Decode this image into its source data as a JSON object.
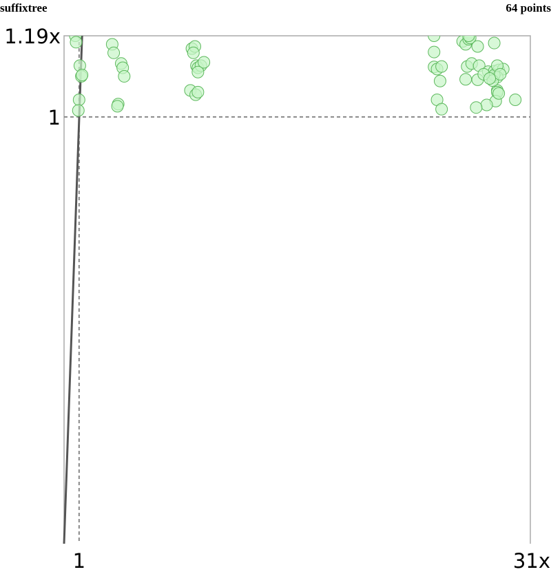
{
  "header": {
    "left": "suffixtree",
    "right": "64 points"
  },
  "chart_data": {
    "type": "scatter",
    "title": "suffixtree",
    "annotation": "64 points",
    "x_ticks": [
      {
        "value": 1,
        "label": "1"
      },
      {
        "value": 31,
        "label": "31x"
      }
    ],
    "y_ticks": [
      {
        "value": 1,
        "label": "1"
      },
      {
        "value": 1.19,
        "label": "1.19x"
      }
    ],
    "xlim": [
      0,
      31
    ],
    "ylim": [
      0,
      1.19
    ],
    "reference_lines": {
      "x": 1,
      "y": 1
    },
    "trend_line": [
      [
        0,
        0
      ],
      [
        1.2,
        1.19
      ]
    ],
    "colors": {
      "point_fill": "#c8f5c8",
      "point_stroke": "#5cb85c",
      "trend": "#555555",
      "frame": "#aaaaaa",
      "reference": "#888888"
    },
    "points": [
      [
        0.75,
        1.19
      ],
      [
        0.8,
        1.175
      ],
      [
        1.05,
        1.12
      ],
      [
        1.15,
        1.095
      ],
      [
        1.2,
        1.098
      ],
      [
        1.0,
        1.04
      ],
      [
        0.95,
        1.015
      ],
      [
        3.2,
        1.17
      ],
      [
        3.3,
        1.15
      ],
      [
        3.8,
        1.125
      ],
      [
        3.9,
        1.115
      ],
      [
        4.0,
        1.095
      ],
      [
        3.6,
        1.03
      ],
      [
        3.55,
        1.025
      ],
      [
        8.5,
        1.16
      ],
      [
        8.7,
        1.165
      ],
      [
        8.8,
        1.12
      ],
      [
        8.9,
        1.115
      ],
      [
        9.1,
        1.12
      ],
      [
        9.3,
        1.128
      ],
      [
        8.6,
        1.15
      ],
      [
        8.9,
        1.105
      ],
      [
        8.4,
        1.062
      ],
      [
        8.75,
        1.052
      ],
      [
        8.9,
        1.058
      ],
      [
        24.6,
        1.19
      ],
      [
        24.6,
        1.152
      ],
      [
        24.6,
        1.117
      ],
      [
        24.8,
        1.112
      ],
      [
        25.1,
        1.118
      ],
      [
        25.0,
        1.084
      ],
      [
        24.8,
        1.04
      ],
      [
        25.1,
        1.018
      ],
      [
        26.5,
        1.177
      ],
      [
        26.7,
        1.17
      ],
      [
        26.9,
        1.182
      ],
      [
        27.0,
        1.185
      ],
      [
        26.9,
        1.19
      ],
      [
        27.5,
        1.165
      ],
      [
        28.6,
        1.173
      ],
      [
        26.8,
        1.118
      ],
      [
        27.1,
        1.125
      ],
      [
        27.6,
        1.12
      ],
      [
        28.2,
        1.106
      ],
      [
        28.6,
        1.107
      ],
      [
        28.9,
        1.11
      ],
      [
        29.2,
        1.112
      ],
      [
        26.7,
        1.088
      ],
      [
        27.5,
        1.087
      ],
      [
        28.5,
        1.094
      ],
      [
        28.8,
        1.093
      ],
      [
        28.6,
        1.098
      ],
      [
        28.8,
        1.12
      ],
      [
        28.8,
        1.062
      ],
      [
        28.8,
        1.058
      ],
      [
        28.7,
        1.037
      ],
      [
        28.1,
        1.028
      ],
      [
        27.4,
        1.022
      ],
      [
        30.0,
        1.04
      ],
      [
        28.9,
        1.055
      ],
      [
        28.5,
        1.085
      ],
      [
        27.9,
        1.1
      ],
      [
        29.0,
        1.1
      ],
      [
        28.3,
        1.09
      ]
    ]
  }
}
